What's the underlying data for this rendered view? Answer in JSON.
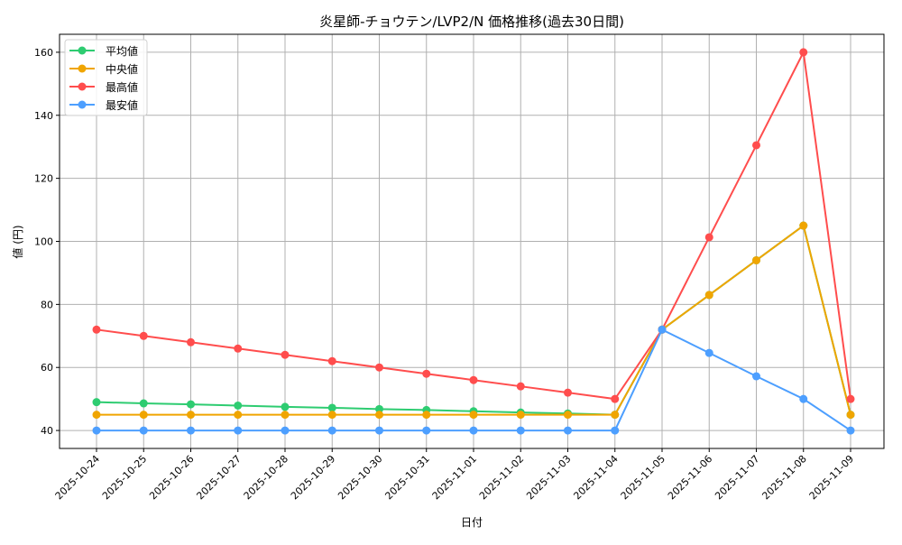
{
  "chart_data": {
    "type": "line",
    "title": "炎星師-チョウテン/LVP2/N 価格推移(過去30日間)",
    "xlabel": "日付",
    "ylabel": "値 (円)",
    "categories": [
      "2025-10-24",
      "2025-10-25",
      "2025-10-26",
      "2025-10-27",
      "2025-10-28",
      "2025-10-29",
      "2025-10-30",
      "2025-10-31",
      "2025-11-01",
      "2025-11-02",
      "2025-11-03",
      "2025-11-04",
      "2025-11-05",
      "2025-11-06",
      "2025-11-07",
      "2025-11-08",
      "2025-11-09"
    ],
    "ylim": [
      34.3,
      165.7
    ],
    "yticks": [
      40,
      60,
      80,
      100,
      120,
      140,
      160
    ],
    "grid": true,
    "legend_position": "top-left",
    "series": [
      {
        "name": "平均値",
        "color": "#2ecc71",
        "values": [
          49,
          48.6,
          48.3,
          47.9,
          47.5,
          47.2,
          46.8,
          46.5,
          46.1,
          45.7,
          45.4,
          45,
          72,
          83,
          94,
          105,
          45
        ]
      },
      {
        "name": "中央値",
        "color": "#f0a500",
        "values": [
          45,
          45,
          45,
          45,
          45,
          45,
          45,
          45,
          45,
          45,
          45,
          45,
          72,
          83,
          94,
          105,
          45
        ]
      },
      {
        "name": "最高値",
        "color": "#ff4d4d",
        "values": [
          72,
          70,
          68,
          66,
          64,
          62,
          60,
          58,
          56,
          54,
          52,
          50,
          72,
          101.3,
          130.5,
          160,
          50
        ]
      },
      {
        "name": "最安値",
        "color": "#4d9fff",
        "values": [
          40,
          40,
          40,
          40,
          40,
          40,
          40,
          40,
          40,
          40,
          40,
          40,
          72,
          64.6,
          57.2,
          50,
          40
        ]
      }
    ]
  }
}
